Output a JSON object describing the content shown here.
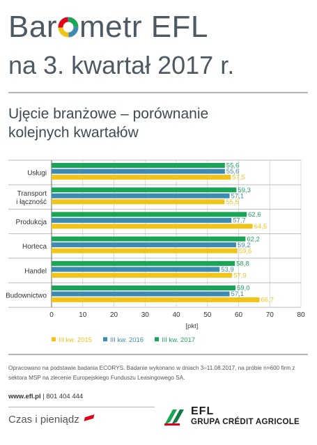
{
  "header": {
    "title_part1": "Bar",
    "title_part2": "metr EFL",
    "title_line2": "na 3. kwartał 2017 r."
  },
  "subtitle_line1": "Ujęcie branżowe – porównanie",
  "subtitle_line2": "kolejnych kwartałów",
  "colors": {
    "series_2015": "#f0c419",
    "series_2016": "#3d8bb1",
    "series_2017": "#1aa556",
    "divider": "#b5b5b5",
    "grid": "#d9d9d9"
  },
  "chart_data": {
    "type": "bar",
    "orientation": "horizontal",
    "categories": [
      [
        "Usługi"
      ],
      [
        "Transport",
        "i łączność"
      ],
      [
        "Produkcja"
      ],
      [
        "Horteca"
      ],
      [
        "Handel"
      ],
      [
        "Budownictwo"
      ]
    ],
    "series": [
      {
        "name": "III kw. 2017",
        "color": "#1aa556",
        "values": [
          55.6,
          59.3,
          62.6,
          62.2,
          58.8,
          59.0
        ]
      },
      {
        "name": "III kw. 2016",
        "color": "#3d8bb1",
        "values": [
          55.6,
          57.1,
          57.7,
          59.2,
          53.9,
          57.1
        ]
      },
      {
        "name": "III kw. 2015",
        "color": "#f0c419",
        "values": [
          57.5,
          55.5,
          64.5,
          59.6,
          57.9,
          66.7
        ]
      }
    ],
    "value_labels": [
      [
        "55,6",
        "59,3",
        "62,6",
        "62,2",
        "58,8",
        "59,0"
      ],
      [
        "55,6",
        "57,1",
        "57,7",
        "59,2",
        "53,9",
        "57,1"
      ],
      [
        "57,5",
        "55,5",
        "64,5",
        "59,6",
        "57,9",
        "66,7"
      ]
    ],
    "xlim": [
      0,
      80
    ],
    "xticks": [
      "0",
      "10",
      "20",
      "30",
      "40",
      "50",
      "60",
      "70",
      "80"
    ],
    "xlabel": "[pkt]",
    "legend": [
      "III kw. 2015",
      "III kw. 2016",
      "III kw. 2017"
    ],
    "legend_position": "bottom",
    "grid": true
  },
  "note": "Opracowano na podstawie badania ECORYS. Badanie wykonano w dniach 3–11.08.2017, na próbie n=600 firm z sektora MSP na zlecenie Europejskiego Funduszu Leasingowego SA.",
  "contact": {
    "url": "www.efl.pl",
    "separator": " | ",
    "phone": "801 404 444"
  },
  "footer": {
    "slogan": "Czas i pieniądz",
    "brand": "EFL",
    "group": "GRUPA CRÉDIT AGRICOLE"
  }
}
